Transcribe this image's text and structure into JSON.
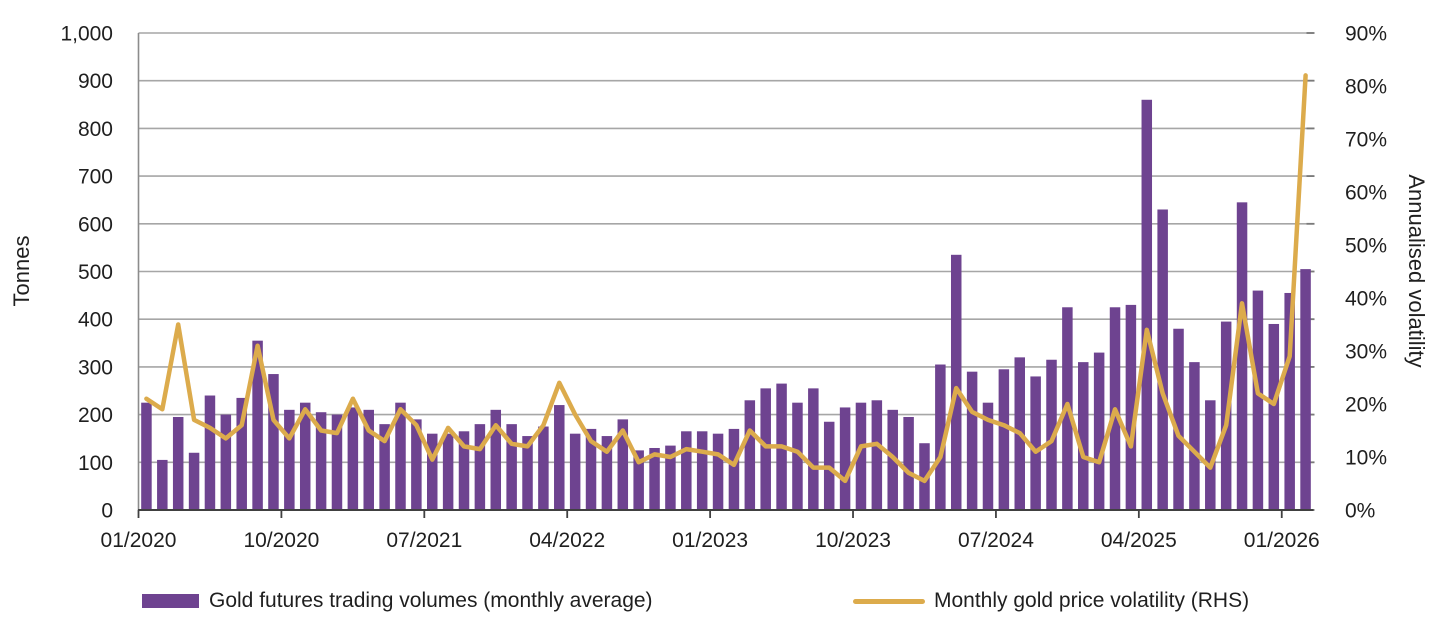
{
  "chart_data": {
    "type": "bar+line",
    "title": "",
    "ylabel_left": "Tonnes",
    "ylabel_right": "Annualised volatility",
    "x": [
      "01/2020",
      "02/2020",
      "03/2020",
      "04/2020",
      "05/2020",
      "06/2020",
      "07/2020",
      "08/2020",
      "09/2020",
      "10/2020",
      "11/2020",
      "12/2020",
      "01/2021",
      "02/2021",
      "03/2021",
      "04/2021",
      "05/2021",
      "06/2021",
      "07/2021",
      "08/2021",
      "09/2021",
      "10/2021",
      "11/2021",
      "12/2021",
      "01/2022",
      "02/2022",
      "03/2022",
      "04/2022",
      "05/2022",
      "06/2022",
      "07/2022",
      "08/2022",
      "09/2022",
      "10/2022",
      "11/2022",
      "12/2022",
      "01/2023",
      "02/2023",
      "03/2023",
      "04/2023",
      "05/2023",
      "06/2023",
      "07/2023",
      "08/2023",
      "09/2023",
      "10/2023",
      "11/2023",
      "12/2023",
      "01/2024",
      "02/2024",
      "03/2024",
      "04/2024",
      "05/2024",
      "06/2024",
      "07/2024",
      "08/2024",
      "09/2024",
      "10/2024",
      "11/2024",
      "12/2024",
      "01/2025",
      "02/2025",
      "03/2025",
      "04/2025",
      "05/2025",
      "06/2025",
      "07/2025",
      "08/2025",
      "09/2025",
      "10/2025",
      "11/2025",
      "12/2025",
      "01/2026",
      "02/2026"
    ],
    "series": [
      {
        "name": "Gold futures trading volumes (monthly average)",
        "type": "bar",
        "axis": "left",
        "color": "#6E4390",
        "values": [
          225,
          105,
          195,
          120,
          240,
          200,
          235,
          355,
          285,
          210,
          225,
          205,
          200,
          215,
          210,
          180,
          225,
          190,
          160,
          160,
          165,
          180,
          210,
          180,
          155,
          175,
          220,
          160,
          170,
          155,
          190,
          125,
          130,
          135,
          165,
          165,
          160,
          170,
          230,
          255,
          265,
          225,
          255,
          185,
          215,
          225,
          230,
          210,
          195,
          140,
          305,
          535,
          290,
          225,
          295,
          320,
          280,
          315,
          425,
          310,
          330,
          425,
          430,
          860,
          630,
          380,
          310,
          230,
          395,
          645,
          460,
          390,
          455,
          505
        ]
      },
      {
        "name": "Monthly gold price volatility (RHS)",
        "type": "line",
        "axis": "right",
        "color": "#DCAB4C",
        "values": [
          21,
          19,
          35,
          17,
          15.5,
          13.5,
          16,
          31,
          17,
          13.5,
          19,
          15,
          14.5,
          21,
          15,
          13,
          19,
          16,
          9.5,
          15.5,
          12,
          11.5,
          16,
          12.5,
          12,
          16,
          24,
          18,
          13,
          11,
          15,
          9,
          10.5,
          10,
          11.5,
          11,
          10.5,
          8.5,
          15,
          12,
          12,
          11,
          8,
          8,
          5.5,
          12,
          12.5,
          10,
          7,
          5.5,
          10,
          23,
          18.5,
          17,
          16,
          14.5,
          11,
          13,
          20,
          10,
          9,
          19,
          12,
          34,
          22,
          14,
          11,
          8,
          16,
          39,
          22,
          20,
          29,
          82
        ]
      }
    ],
    "axes": {
      "left": {
        "min": 0,
        "max": 1000,
        "step": 100,
        "tick_labels": [
          "0",
          "100",
          "200",
          "300",
          "400",
          "500",
          "600",
          "700",
          "800",
          "900",
          "1,000"
        ]
      },
      "right": {
        "min": 0,
        "max": 90,
        "step": 10,
        "tick_labels": [
          "0%",
          "10%",
          "20%",
          "30%",
          "40%",
          "50%",
          "60%",
          "70%",
          "80%",
          "90%"
        ]
      },
      "x_tick_month_indices": [
        0,
        9,
        18,
        27,
        36,
        45,
        54,
        63,
        72
      ],
      "x_tick_labels": [
        "01/2020",
        "10/2020",
        "07/2021",
        "04/2022",
        "01/2023",
        "10/2023",
        "07/2024",
        "04/2025",
        "01/2026"
      ]
    },
    "grid": true,
    "legend_position": "bottom",
    "colors": {
      "bar": "#6E4390",
      "line": "#DCAB4C",
      "gridline": "#A6A6A6",
      "axis_line": "#404040",
      "left_axis_line": "#8C8C8C",
      "text": "#1F1F1F",
      "background": "#FFFFFF"
    }
  }
}
